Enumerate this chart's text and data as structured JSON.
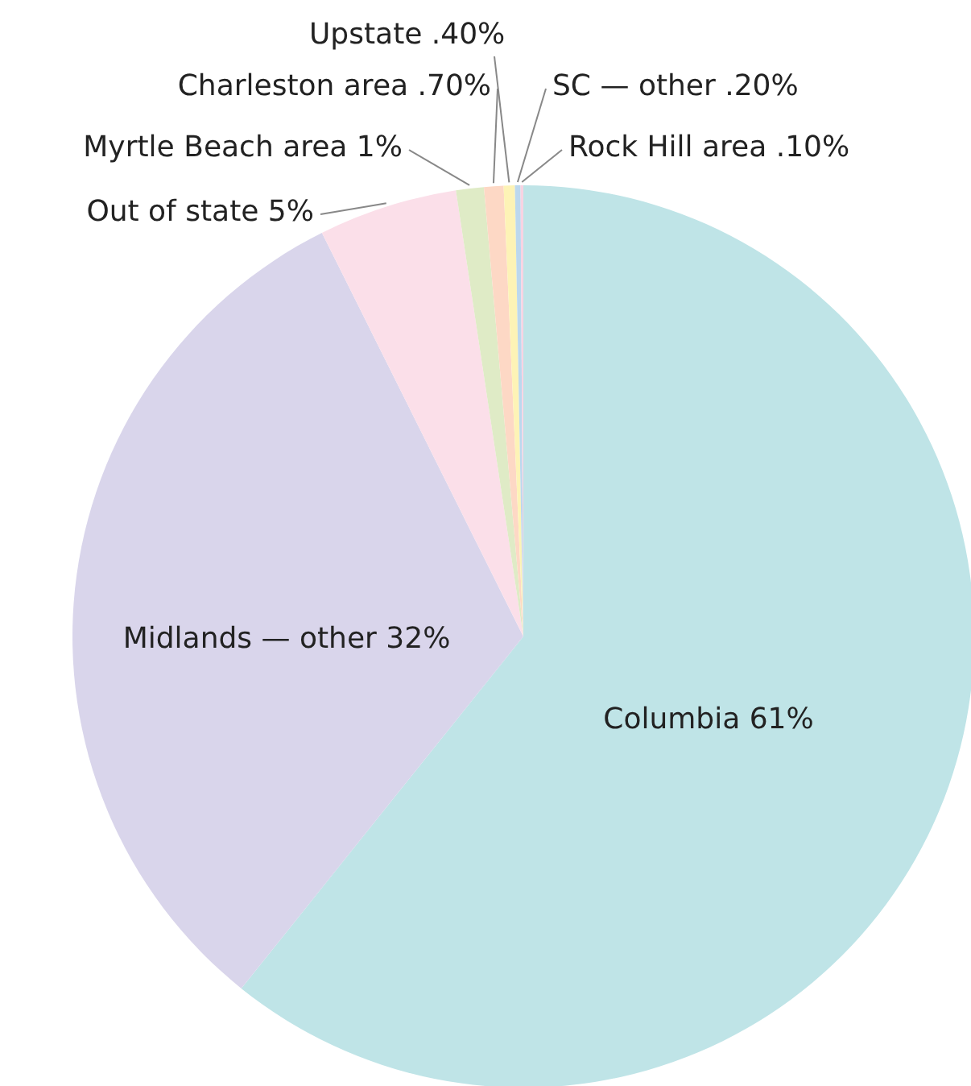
{
  "chart_data": {
    "type": "pie",
    "categories": [
      "Columbia",
      "Midlands — other",
      "Out of state",
      "Myrtle Beach area",
      "Charleston area",
      "Upstate",
      "SC — other",
      "Rock Hill area"
    ],
    "values": [
      61,
      32,
      5,
      1,
      0.7,
      0.4,
      0.2,
      0.1
    ],
    "value_labels": [
      "61%",
      "32%",
      "5%",
      "1%",
      ".70%",
      ".40%",
      ".20%",
      ".10%"
    ],
    "colors": [
      "#bfe4e7",
      "#d9d5eb",
      "#fbdfe9",
      "#dfebc6",
      "#fdd8c5",
      "#fdf3b6",
      "#bcd8ee",
      "#f8d3e2"
    ]
  }
}
